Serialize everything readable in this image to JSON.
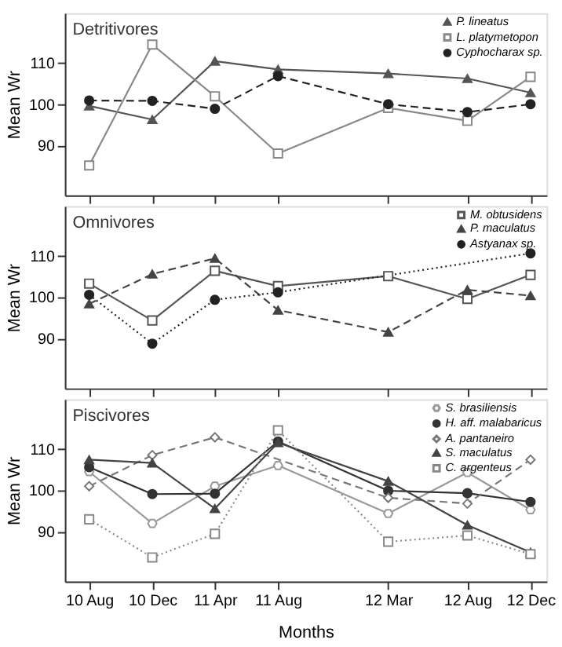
{
  "chart_data": [
    {
      "type": "line",
      "title": "Detritivores",
      "ylabel": "Mean Wr",
      "x": [
        "2010-08",
        "2010-12",
        "2011-04",
        "2011-08",
        "2012-03",
        "2012-08",
        "2012-12"
      ],
      "xlim": [
        "2010-06-15",
        "2013-01-01"
      ],
      "xticks": [
        {
          "value": "2010-08",
          "label": null
        },
        {
          "value": "2010-12",
          "label": null
        },
        {
          "value": "2011-04",
          "label": null
        },
        {
          "value": "2011-08",
          "label": null
        },
        {
          "value": "2012-03",
          "label": null
        },
        {
          "value": "2012-08",
          "label": null
        },
        {
          "value": "2012-12",
          "label": null
        }
      ],
      "ylim": [
        78,
        122
      ],
      "yticks": [
        90,
        100,
        110
      ],
      "tick_labels": "y",
      "legend": "top right",
      "grid": false,
      "series": [
        {
          "name": "P. lineatus",
          "color": "#555555",
          "marker": "triangle",
          "line_style": "solid",
          "values": [
            99.6,
            96.3,
            110.4,
            108.4,
            107.4,
            106.2,
            102.8
          ]
        },
        {
          "name": "L. platymetopon",
          "color": "#888888",
          "marker": "square",
          "line_style": "solid",
          "values": [
            85.2,
            114.4,
            101.9,
            88.1,
            99.1,
            96.0,
            106.6
          ]
        },
        {
          "name": "Cyphocharax sp.",
          "color": "#222222",
          "marker": "circle",
          "line_style": "dashed",
          "values": [
            100.9,
            100.8,
            98.9,
            106.8,
            100.0,
            98.1,
            100.0
          ]
        }
      ]
    },
    {
      "type": "line",
      "title": "Omnivores",
      "ylabel": "Mean Wr",
      "x": [
        "2010-08",
        "2010-12",
        "2011-04",
        "2011-08",
        "2012-03",
        "2012-08",
        "2012-12"
      ],
      "xlim": [
        "2010-06-15",
        "2013-01-01"
      ],
      "xticks": [
        {
          "value": "2010-08",
          "label": null
        },
        {
          "value": "2010-12",
          "label": null
        },
        {
          "value": "2011-04",
          "label": null
        },
        {
          "value": "2011-08",
          "label": null
        },
        {
          "value": "2012-03",
          "label": null
        },
        {
          "value": "2012-08",
          "label": null
        },
        {
          "value": "2012-12",
          "label": null
        }
      ],
      "ylim": [
        78,
        122
      ],
      "yticks": [
        90,
        100,
        110
      ],
      "tick_labels": "y",
      "legend": "top right",
      "grid": false,
      "series": [
        {
          "name": "M. obtusidens",
          "color": "#555555",
          "marker": "square",
          "line_style": "solid",
          "values": [
            103.3,
            94.4,
            106.4,
            102.7,
            105.1,
            99.6,
            105.4
          ]
        },
        {
          "name": "P. maculatus",
          "color": "#444444",
          "marker": "triangle",
          "line_style": "dashed",
          "values": [
            98.4,
            105.6,
            109.4,
            96.9,
            91.6,
            101.8,
            100.4
          ]
        },
        {
          "name": "Astyanax sp.",
          "color": "#222222",
          "marker": "circle",
          "line_style": "dotted",
          "values": [
            100.6,
            88.8,
            99.4,
            101.2,
            null,
            null,
            110.6
          ]
        }
      ]
    },
    {
      "type": "line",
      "title": "Piscivores",
      "xlabel": "Months",
      "ylabel": "Mean Wr",
      "x": [
        "2010-08",
        "2010-12",
        "2011-04",
        "2011-08",
        "2012-03",
        "2012-08",
        "2012-12"
      ],
      "xlim": [
        "2010-06-15",
        "2013-01-01"
      ],
      "xticks": [
        {
          "value": "2010-08",
          "label": "10 Aug"
        },
        {
          "value": "2010-12",
          "label": "10 Dec"
        },
        {
          "value": "2011-04",
          "label": "11 Apr"
        },
        {
          "value": "2011-08",
          "label": "11 Aug"
        },
        {
          "value": "2012-03",
          "label": "12 Mar"
        },
        {
          "value": "2012-08",
          "label": "12 Aug"
        },
        {
          "value": "2012-12",
          "label": "12 Dec"
        }
      ],
      "ylim": [
        78,
        122
      ],
      "yticks": [
        90,
        100,
        110
      ],
      "legend": "top right",
      "grid": false,
      "series": [
        {
          "name": "S. brasiliensis",
          "color": "#999999",
          "marker": "star",
          "line_style": "solid",
          "values": [
            104.5,
            92.0,
            101.0,
            106.0,
            94.4,
            104.3,
            95.3
          ]
        },
        {
          "name": "H. aff. malabaricus",
          "color": "#333333",
          "marker": "circle",
          "line_style": "solid",
          "values": [
            105.6,
            99.1,
            99.2,
            111.8,
            99.9,
            99.3,
            97.2
          ]
        },
        {
          "name": "A. pantaneiro",
          "color": "#777777",
          "marker": "diamond",
          "line_style": "dashed",
          "values": [
            101.0,
            108.5,
            112.8,
            null,
            98.2,
            96.8,
            107.4
          ]
        },
        {
          "name": "S. maculatus",
          "color": "#444444",
          "marker": "triangle",
          "line_style": "solid",
          "values": [
            107.4,
            106.6,
            95.6,
            111.5,
            102.2,
            91.6,
            85.0
          ]
        },
        {
          "name": "C. argenteus",
          "color": "#888888",
          "marker": "square",
          "line_style": "dotted",
          "values": [
            93.0,
            83.8,
            89.5,
            114.5,
            87.6,
            89.1,
            84.6
          ]
        }
      ]
    }
  ]
}
